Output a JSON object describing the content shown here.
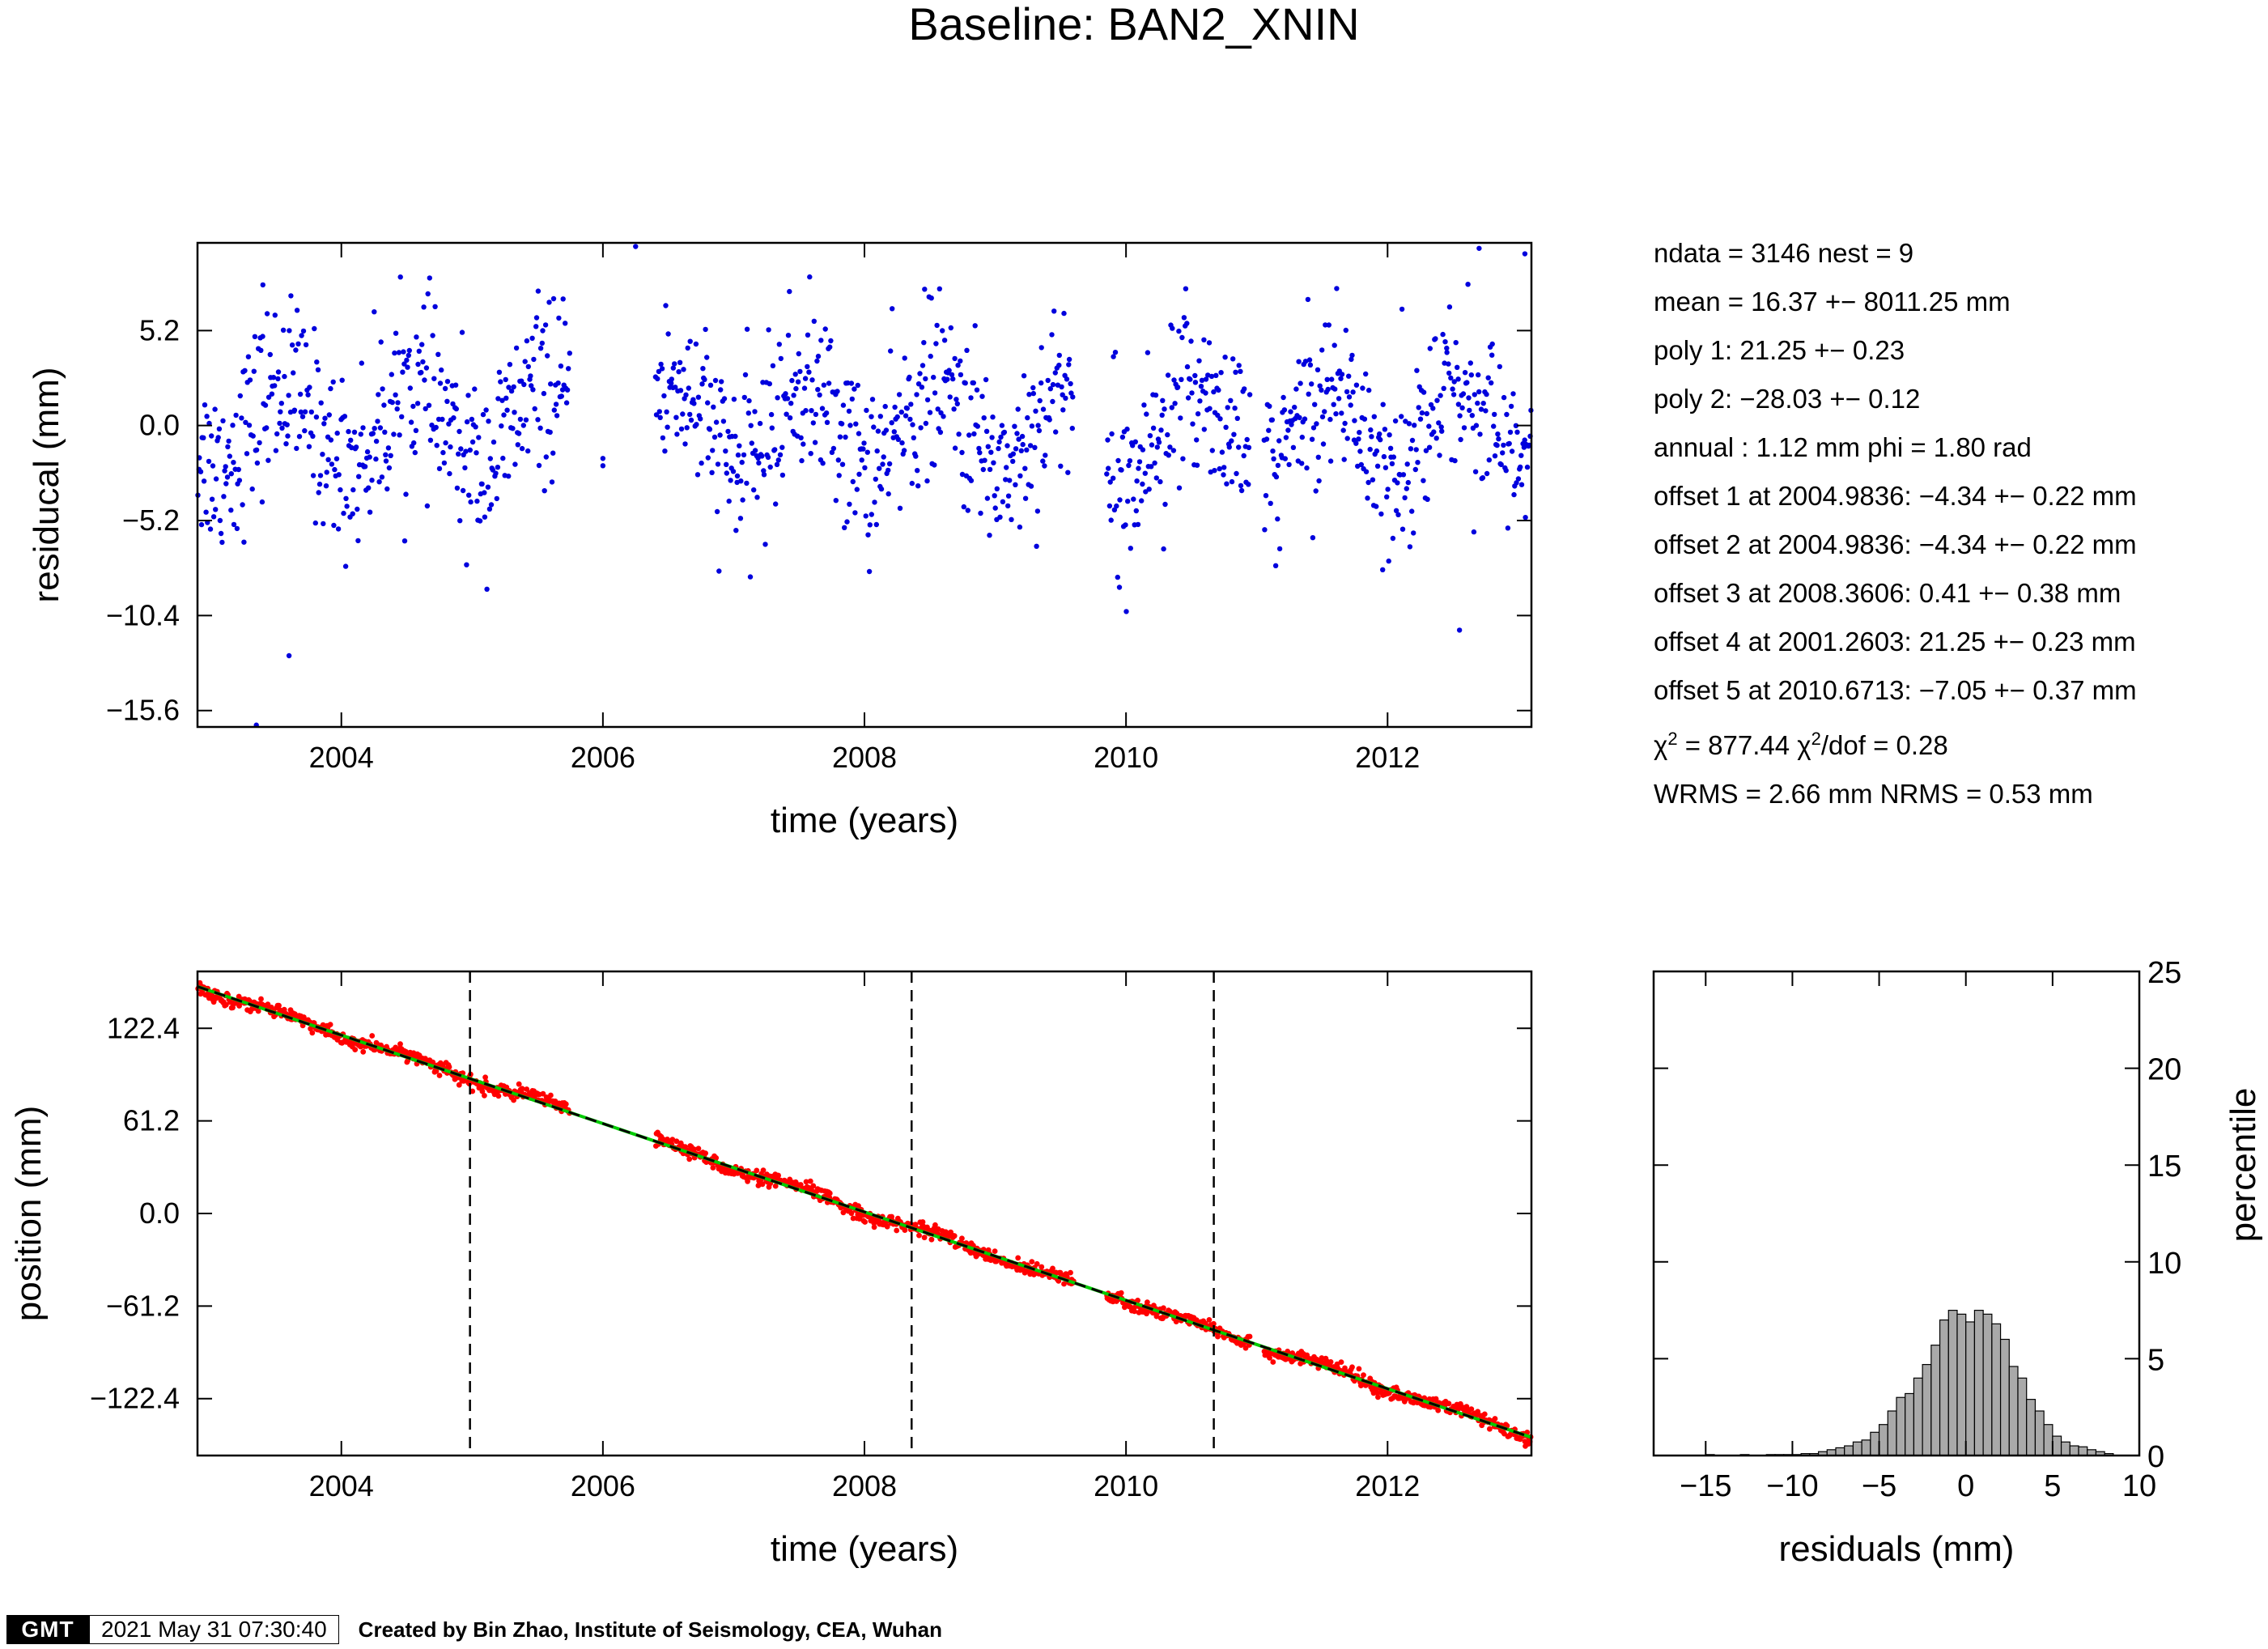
{
  "title": "Baseline: BAN2_XNIN",
  "stats": {
    "ndata": "ndata = 3146  nest = 9",
    "mean": "mean = 16.37 +− 8011.25 mm",
    "poly1": "poly 1: 21.25 +− 0.23",
    "poly2": "poly 2: −28.03 +− 0.12",
    "annual": "annual : 1.12 mm  phi = 1.80 rad",
    "offset1": "offset 1 at 2004.9836: −4.34 +− 0.22 mm",
    "offset2": "offset 2 at 2004.9836: −4.34 +− 0.22 mm",
    "offset3": "offset 3 at 2008.3606: 0.41 +− 0.38 mm",
    "offset4": "offset 4 at 2001.2603: 21.25 +− 0.23 mm",
    "offset5": "offset 5 at 2010.6713: −7.05 +− 0.37 mm",
    "chi2": "χ",
    "chi2_val": " = 877.44  ",
    "chi2dof": "χ",
    "chi2dof_val": "/dof = 0.28",
    "sup2": "2",
    "wrms": "WRMS = 2.66 mm  NRMS = 0.53 mm"
  },
  "footer": {
    "logo": "GMT",
    "timestamp": "2021 May 31 07:30:40",
    "credit": "Created by Bin Zhao, Institute of Seismology, CEA, Wuhan"
  },
  "colors": {
    "residual_points": "#0000dd",
    "position_points": "#ff0000",
    "trend_line": "#000000",
    "model_line": "#00cc00",
    "histogram_fill": "#a9a9a9"
  },
  "chart_data": [
    {
      "type": "scatter",
      "name": "residuals",
      "xlabel": "time (years)",
      "ylabel": "residucal (mm)",
      "xlim": [
        2002.9,
        2013.1
      ],
      "ylim": [
        -16.5,
        10.0
      ],
      "xticks": [
        2004,
        2006,
        2008,
        2010,
        2012
      ],
      "yticks": [
        5.2,
        0.0,
        -5.2,
        -10.4,
        -15.6
      ],
      "ytick_labels": [
        "5.2",
        "0.0",
        "−5.2",
        "−10.4",
        "−15.6"
      ],
      "data_gaps": [
        [
          2005.75,
          2006.4
        ],
        [
          2009.6,
          2009.85
        ],
        [
          2010.95,
          2011.05
        ]
      ],
      "outliers": [
        [
          2006.25,
          9.8
        ],
        [
          2003.35,
          -16.4
        ],
        [
          2003.6,
          -12.6
        ],
        [
          2003.4,
          7.7
        ],
        [
          2012.55,
          -11.2
        ],
        [
          2012.7,
          9.7
        ],
        [
          2013.05,
          9.4
        ]
      ],
      "seasonal_segments": [
        {
          "x": [
            2002.9,
            2005.75
          ],
          "mean": 0.0
        },
        {
          "x": [
            2006.4,
            2009.6
          ],
          "mean": -0.5
        },
        {
          "x": [
            2009.85,
            2010.95
          ],
          "mean": 0.5
        },
        {
          "x": [
            2011.05,
            2013.1
          ],
          "mean": 0.5
        }
      ],
      "spread_sd": 2.66,
      "n_points": 3146
    },
    {
      "type": "scatter",
      "name": "position",
      "xlabel": "time (years)",
      "ylabel": "position (mm)",
      "xlim": [
        2002.9,
        2013.1
      ],
      "ylim": [
        -160,
        160
      ],
      "xticks": [
        2004,
        2006,
        2008,
        2010,
        2012
      ],
      "yticks": [
        122.4,
        61.2,
        0.0,
        -61.2,
        -122.4
      ],
      "ytick_labels": [
        "122.4",
        "61.2",
        "0.0",
        "−61.2",
        "−122.4"
      ],
      "trend": [
        [
          2002.9,
          150
        ],
        [
          2013.1,
          -148
        ]
      ],
      "offset_lines_x": [
        2004.9836,
        2008.3606,
        2010.6713
      ],
      "data_gaps": [
        [
          2005.75,
          2006.4
        ],
        [
          2009.6,
          2009.85
        ],
        [
          2010.95,
          2011.05
        ]
      ]
    },
    {
      "type": "bar",
      "name": "histogram",
      "xlabel": "residuals (mm)",
      "ylabel": "percentile",
      "xlim": [
        -18,
        10
      ],
      "ylim": [
        0,
        25
      ],
      "xticks": [
        -15,
        -10,
        -5,
        0,
        5,
        10
      ],
      "xtick_labels": [
        "−15",
        "−10",
        "−5",
        "0",
        "5",
        "10"
      ],
      "yticks": [
        0,
        5,
        10,
        15,
        20,
        25
      ],
      "bin_width": 0.5,
      "bins": [
        [
          -15,
          0.05
        ],
        [
          -13,
          0.05
        ],
        [
          -11.5,
          0.05
        ],
        [
          -11,
          0.05
        ],
        [
          -10.5,
          0.05
        ],
        [
          -10,
          0.05
        ],
        [
          -9.5,
          0.1
        ],
        [
          -9,
          0.1
        ],
        [
          -8.5,
          0.2
        ],
        [
          -8,
          0.3
        ],
        [
          -7.5,
          0.4
        ],
        [
          -7,
          0.5
        ],
        [
          -6.5,
          0.7
        ],
        [
          -6,
          0.8
        ],
        [
          -5.5,
          1.2
        ],
        [
          -5,
          1.6
        ],
        [
          -4.5,
          2.3
        ],
        [
          -4,
          3.0
        ],
        [
          -3.5,
          3.2
        ],
        [
          -3,
          4.0
        ],
        [
          -2.5,
          4.7
        ],
        [
          -2,
          5.7
        ],
        [
          -1.5,
          7.0
        ],
        [
          -1,
          7.5
        ],
        [
          -0.5,
          7.3
        ],
        [
          0,
          6.9
        ],
        [
          0.5,
          7.5
        ],
        [
          1,
          7.3
        ],
        [
          1.5,
          6.8
        ],
        [
          2,
          6.0
        ],
        [
          2.5,
          4.6
        ],
        [
          3,
          4.0
        ],
        [
          3.5,
          2.9
        ],
        [
          4,
          2.3
        ],
        [
          4.5,
          1.6
        ],
        [
          5,
          1.0
        ],
        [
          5.5,
          0.7
        ],
        [
          6,
          0.5
        ],
        [
          6.5,
          0.45
        ],
        [
          7,
          0.3
        ],
        [
          7.5,
          0.2
        ],
        [
          8,
          0.1
        ]
      ]
    }
  ]
}
